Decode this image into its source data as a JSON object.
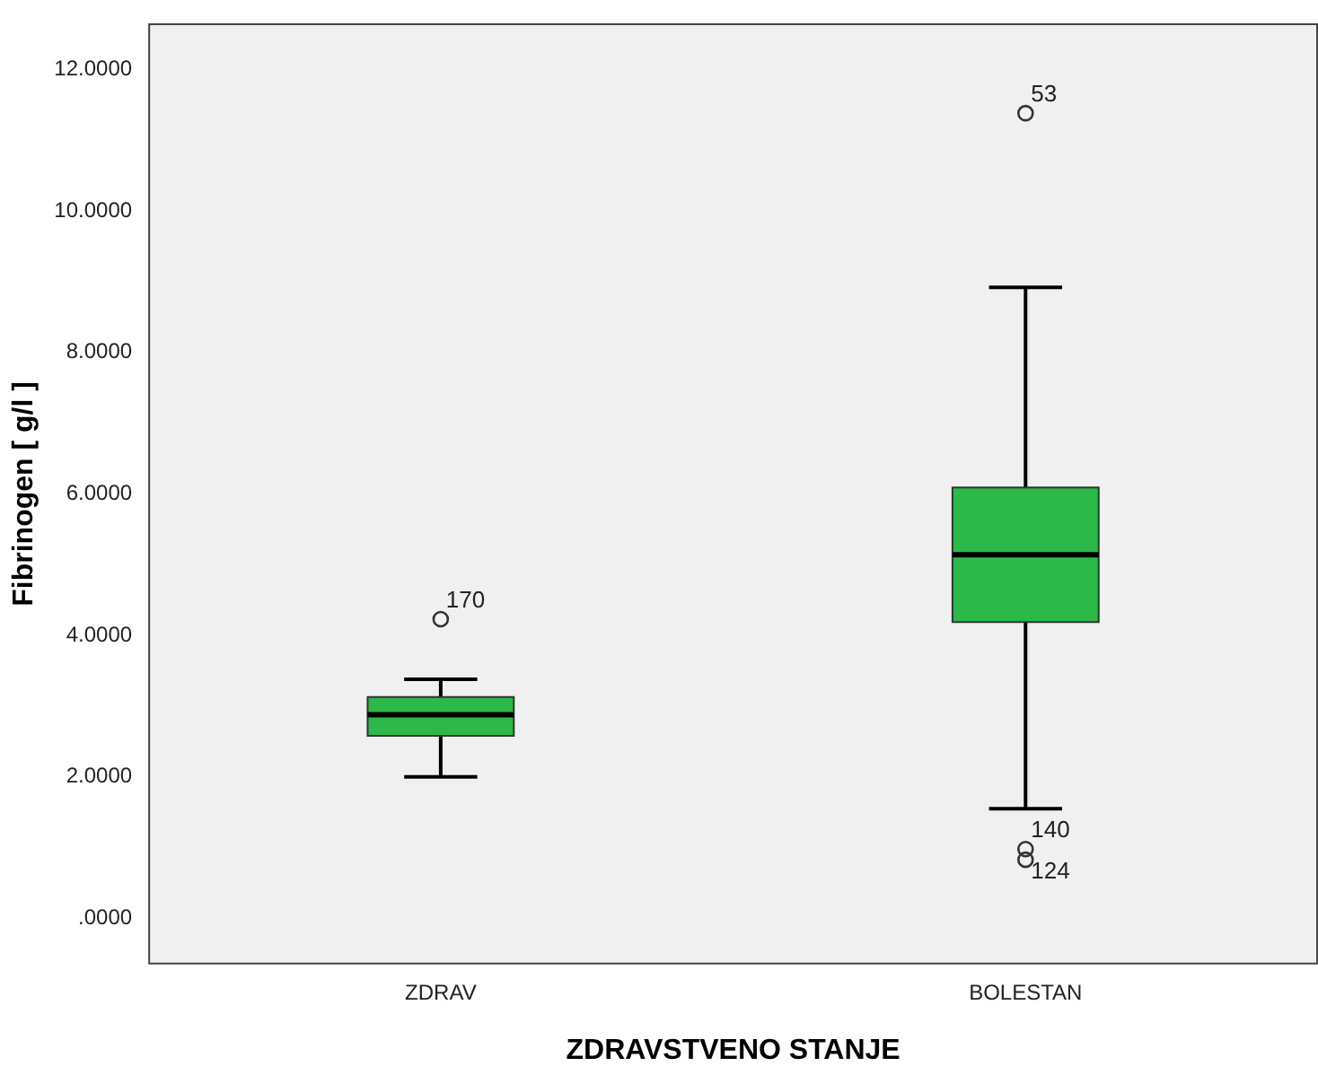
{
  "chart_data": {
    "type": "box",
    "xlabel": "ZDRAVSTVENO STANJE",
    "ylabel": "Fibrinogen [ g/l ]",
    "categories": [
      "ZDRAV",
      "BOLESTAN"
    ],
    "color": "#2db84a",
    "boxes": [
      {
        "low": 2.0,
        "q1": 2.58,
        "median": 2.88,
        "q3": 3.13,
        "high": 3.38,
        "outliers": [
          4.23
        ]
      },
      {
        "low": 1.55,
        "q1": 4.19,
        "median": 5.14,
        "q3": 6.09,
        "high": 8.92,
        "outliers": [
          11.38,
          0.98,
          0.83
        ]
      }
    ],
    "ylim": [
      -0.65,
      12.65
    ],
    "yticks": [
      {
        "value": 0,
        "label": ".0000"
      },
      {
        "value": 2,
        "label": "2.0000"
      },
      {
        "value": 4,
        "label": "4.0000"
      },
      {
        "value": 6,
        "label": "6.0000"
      },
      {
        "value": 8,
        "label": "8.0000"
      },
      {
        "value": 10,
        "label": "10.0000"
      },
      {
        "value": 12,
        "label": "12.0000"
      }
    ],
    "grid": false,
    "legend": false,
    "annotations": [
      "170",
      "53",
      "140",
      "124"
    ]
  }
}
